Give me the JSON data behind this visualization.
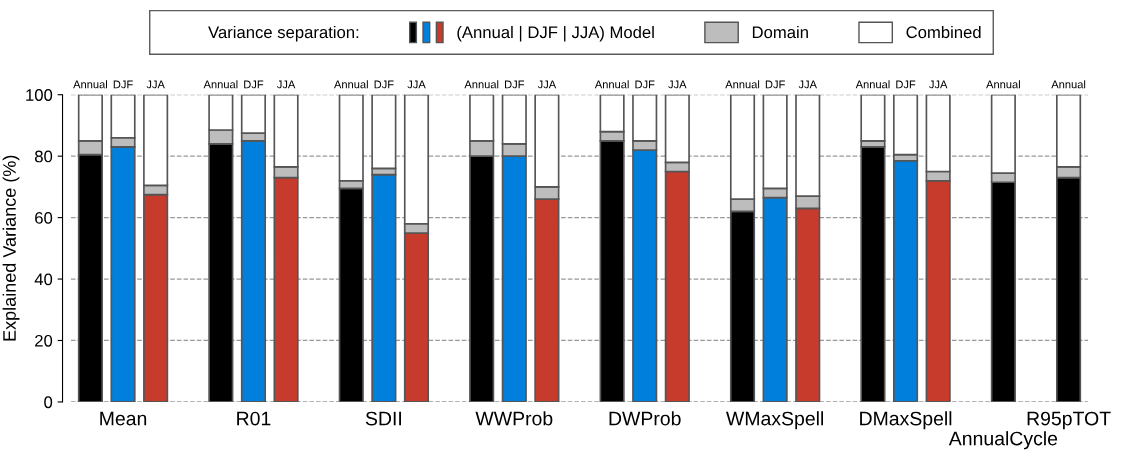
{
  "chart_data": {
    "type": "bar",
    "stacked": true,
    "ylabel": "Explained Variance (%)",
    "legend_title": "Variance separation:",
    "legend": "top",
    "grid": "y",
    "ylim": [
      0,
      100
    ],
    "yticks": [
      0,
      20,
      40,
      60,
      80,
      100
    ],
    "categories": [
      "Annual",
      "DJF",
      "JJA",
      null,
      "Annual",
      "DJF",
      "JJA",
      null,
      "Annual",
      "DJF",
      "JJA",
      null,
      "Annual",
      "DJF",
      "JJA",
      null,
      "Annual",
      "DJF",
      "JJA",
      null,
      "Annual",
      "DJF",
      "JJA",
      null,
      "Annual",
      "DJF",
      "JJA",
      null,
      "Annual",
      null,
      "Annual"
    ],
    "annotations": [
      "Mean",
      "R01",
      "SDII",
      "WWProb",
      "DWProb",
      "WMaxSpell",
      "DMaxSpell",
      "AnnualCycle",
      "R95pTOT"
    ],
    "series": [
      {
        "name": "(Annual | DJF | JJA) Model",
        "colors": [
          "#000000",
          "#0080dc",
          "#c63b2c",
          null,
          "#000000",
          "#0080dc",
          "#c63b2c",
          null,
          "#000000",
          "#0080dc",
          "#c63b2c",
          null,
          "#000000",
          "#0080dc",
          "#c63b2c",
          null,
          "#000000",
          "#0080dc",
          "#c63b2c",
          null,
          "#000000",
          "#0080dc",
          "#c63b2c",
          null,
          "#000000",
          "#0080dc",
          "#c63b2c",
          null,
          "#000000",
          null,
          "#000000"
        ],
        "values": [
          80.5,
          83,
          67.5,
          null,
          84,
          85,
          73,
          null,
          69.5,
          74,
          55,
          null,
          80,
          80,
          66,
          null,
          85,
          82,
          75,
          null,
          62,
          66.5,
          63,
          null,
          83,
          78.5,
          72,
          null,
          71.5,
          null,
          73
        ]
      },
      {
        "name": "Domain",
        "color": "#bdbdbd",
        "values": [
          4.5,
          3,
          3,
          null,
          4.5,
          2.5,
          3.5,
          null,
          2.5,
          2,
          3,
          null,
          5,
          4,
          4,
          null,
          3,
          3,
          3,
          null,
          4,
          3,
          4,
          null,
          2,
          2,
          3,
          null,
          3,
          null,
          3.5
        ]
      },
      {
        "name": "Combined",
        "color": "#ffffff",
        "values": [
          15,
          14,
          29.5,
          null,
          11.5,
          12.5,
          23.5,
          null,
          28,
          24,
          42,
          null,
          15,
          16,
          30,
          null,
          12,
          15,
          22,
          null,
          34,
          30.5,
          33,
          null,
          15,
          19.5,
          25,
          null,
          25.5,
          null,
          23.5
        ]
      }
    ]
  }
}
